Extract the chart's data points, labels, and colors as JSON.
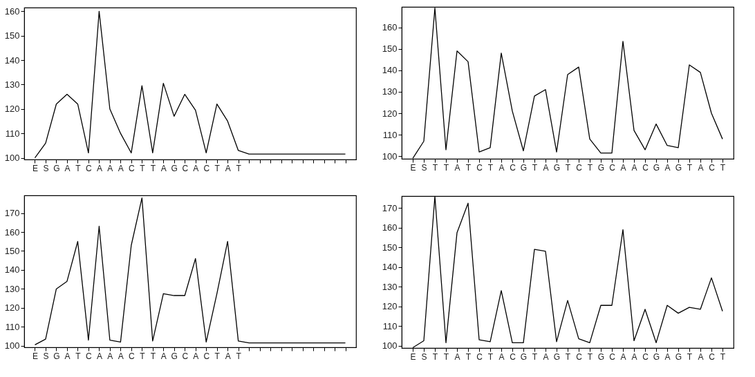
{
  "chart_data": [
    {
      "type": "line",
      "categories": [
        "E",
        "S",
        "G",
        "A",
        "T",
        "C",
        "A",
        "A",
        "A",
        "C",
        "T",
        "T",
        "A",
        "G",
        "C",
        "A",
        "C",
        "T",
        "A",
        "T",
        null,
        null,
        null,
        null,
        null,
        null,
        null,
        null,
        null,
        null
      ],
      "series": [
        {
          "color": "#000000",
          "values": [
            100,
            106,
            122,
            126,
            122,
            102,
            160,
            120,
            110,
            102,
            129.5,
            102,
            130.5,
            117,
            126,
            119.5,
            102,
            122,
            115,
            103,
            101.5,
            101.5,
            101.5,
            101.5,
            101.5,
            101.5,
            101.5,
            101.5,
            101.5,
            101.5
          ]
        }
      ],
      "ylim": [
        99.3,
        161.5
      ],
      "yticks": [
        100,
        110,
        120,
        130,
        140,
        150,
        160
      ],
      "grid": false
    },
    {
      "type": "line",
      "categories": [
        "E",
        "S",
        "T",
        "T",
        "A",
        "T",
        "C",
        "T",
        "A",
        "C",
        "G",
        "T",
        "A",
        "G",
        "T",
        "C",
        "T",
        "G",
        "C",
        "A",
        "A",
        "C",
        "G",
        "A",
        "G",
        "T",
        "A",
        "C",
        "T"
      ],
      "series": [
        {
          "color": "#000000",
          "values": [
            99,
            107,
            169,
            103,
            149,
            144,
            102,
            104,
            148,
            121,
            102.5,
            128,
            131,
            102,
            138,
            141.5,
            108,
            101.5,
            101.5,
            153.5,
            112,
            103,
            115,
            105,
            104,
            142.5,
            139,
            120,
            108
          ]
        }
      ],
      "ylim": [
        98.8,
        169.5
      ],
      "yticks": [
        100,
        110,
        120,
        130,
        140,
        150,
        160
      ],
      "grid": false
    },
    {
      "type": "line",
      "categories": [
        "E",
        "S",
        "G",
        "A",
        "T",
        "C",
        "A",
        "A",
        "A",
        "C",
        "T",
        "T",
        "A",
        "G",
        "C",
        "A",
        "C",
        "T",
        "A",
        "T",
        null,
        null,
        null,
        null,
        null,
        null,
        null,
        null,
        null,
        null
      ],
      "series": [
        {
          "color": "#000000",
          "values": [
            100.5,
            103.5,
            130,
            134,
            155,
            103,
            163,
            103,
            102,
            153,
            178,
            102.5,
            127.5,
            126.5,
            126.5,
            146,
            102,
            127.5,
            155,
            102.5,
            101.5,
            101.5,
            101.5,
            101.5,
            101.5,
            101.5,
            101.5,
            101.5,
            101.5,
            101.5
          ]
        }
      ],
      "ylim": [
        99.2,
        179.3
      ],
      "yticks": [
        100,
        110,
        120,
        130,
        140,
        150,
        160,
        170
      ],
      "grid": false
    },
    {
      "type": "line",
      "categories": [
        "E",
        "S",
        "T",
        "T",
        "A",
        "T",
        "C",
        "T",
        "A",
        "C",
        "G",
        "T",
        "A",
        "G",
        "T",
        "C",
        "T",
        "G",
        "C",
        "A",
        "A",
        "C",
        "G",
        "A",
        "G",
        "T",
        "A",
        "C",
        "T"
      ],
      "series": [
        {
          "color": "#000000",
          "values": [
            99,
            102.5,
            176,
            101.5,
            157.5,
            172.5,
            103,
            102,
            128,
            101.5,
            101.5,
            149,
            148,
            102,
            123,
            103.5,
            101.5,
            120.5,
            120.5,
            159,
            102.5,
            118.5,
            101.5,
            120.5,
            116.5,
            119.5,
            118.5,
            134.5,
            117.5
          ]
        }
      ],
      "ylim": [
        98.8,
        176.1
      ],
      "yticks": [
        100,
        110,
        120,
        130,
        140,
        150,
        160,
        170
      ],
      "grid": false
    }
  ]
}
